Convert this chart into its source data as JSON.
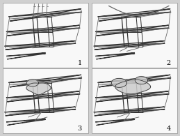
{
  "background_color": "#ffffff",
  "panel_bg": "#f8f8f8",
  "border_color": "#aaaaaa",
  "outer_bg": "#d0d0d0",
  "panel_labels": [
    "1",
    "2",
    "3",
    "4"
  ],
  "label_fontsize": 7,
  "line_color": "#666666",
  "line_color_dark": "#333333",
  "line_color_light": "#999999",
  "fill_color": "#e8e8e8",
  "fill_color2": "#d8d8d8",
  "blob_fill": "#cccccc",
  "figsize": [
    2.59,
    1.95
  ],
  "dpi": 100
}
